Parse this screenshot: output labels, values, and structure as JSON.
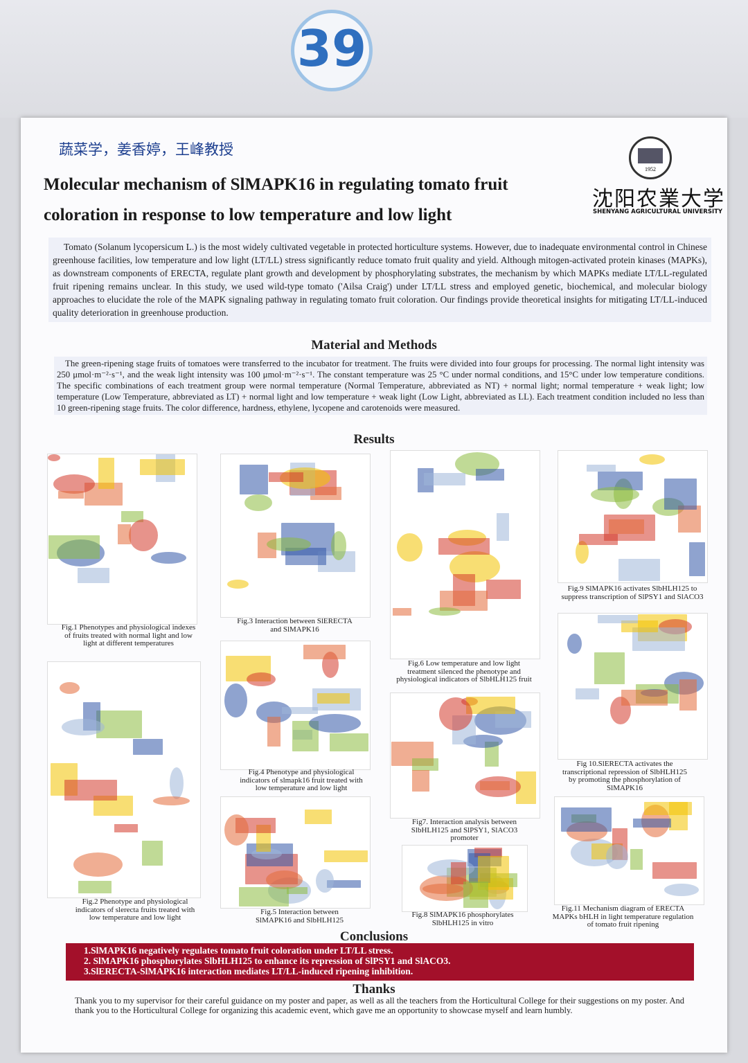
{
  "badge": "39",
  "authors": "蔬菜学，姜香婷，王峰教授",
  "title": [
    "Molecular mechanism of SlMAPK16 in regulating tomato fruit",
    "coloration in response to low temperature and low light"
  ],
  "university": {
    "name_cn": "沈阳农業大学",
    "name_en": "SHENYANG AGRICULTURAL UNIVERSITY",
    "year": "1952"
  },
  "abstract": "Tomato (Solanum lycopersicum L.) is the most widely cultivated vegetable in protected horticulture systems. However, due to inadequate environmental control in Chinese greenhouse facilities, low temperature and low light (LT/LL) stress significantly reduce tomato fruit quality and yield. Although mitogen-activated protein kinases (MAPKs), as downstream components of ERECTA, regulate plant growth and development by phosphorylating substrates, the mechanism by which MAPKs mediate LT/LL-regulated fruit ripening remains unclear. In this study, we used wild-type tomato ('Ailsa Craig') under LT/LL stress and employed genetic, biochemical, and molecular biology approaches to elucidate the role of the MAPK signaling pathway in regulating tomato fruit coloration. Our findings provide theoretical insights for mitigating LT/LL-induced quality deterioration in greenhouse production.",
  "methods": {
    "heading": "Material and Methods",
    "text": "The green-ripening stage fruits of tomatoes were transferred to the incubator for treatment. The fruits were divided into four groups for processing. The normal light intensity was 250 μmol·m⁻²·s⁻¹, and the weak light intensity was 100 μmol·m⁻²·s⁻¹. The constant temperature was 25 °C under normal conditions, and 15°C under low temperature conditions. The specific combinations of each treatment group were normal temperature (Normal Temperature, abbreviated as NT) + normal light; normal temperature + weak light; low temperature (Low Temperature, abbreviated as LT) + normal light and low temperature + weak light (Low Light, abbreviated as LL). Each treatment condition included no less than 10 green-ripening stage fruits. The color difference, hardness, ethylene, lycopene and carotenoids were measured."
  },
  "results": {
    "heading": "Results",
    "figures": [
      "Fig.1 Phenotypes and physiological indexes of fruits treated with normal light and low light at different temperatures",
      "Fig.2 Phenotype and physiological indicators of slerecta fruits treated with low temperature and low light",
      "Fig.3 Interaction between SlERECTA and SlMAPK16",
      "Fig.4 Phenotype and physiological indicators of slmapk16 fruit treated with low temperature and low light",
      "Fig.5 Interaction between SlMAPK16 and SlbHLH125",
      "Fig.6 Low temperature and low light treatment silenced the phenotype and physiological indicators of SlbHLH125 fruit",
      "Fig7. Interaction analysis between SlbHLH125 and SlPSY1, SlACO3 promoter",
      "Fig.8 SlMAPK16 phosphorylates SlbHLH125 in vitro",
      "Fig.9 SlMAPK16 activates SlbHLH125 to suppress transcription of SlPSY1 and SlACO3",
      "Fig 10.SlERECTA activates the transcriptional repression of SlbHLH125 by promoting the phosphorylation of SlMAPK16",
      "Fig.11 Mechanism diagram of ERECTA MAPKs bHLH in light temperature regulation of tomato fruit ripening"
    ]
  },
  "conclusions": {
    "heading": "Conclusions",
    "items": [
      "1.SlMAPK16 negatively regulates tomato fruit coloration under LT/LL stress.",
      "2. SlMAPK16 phosphorylates SlbHLH125 to enhance its repression of SlPSY1 and SlACO3.",
      "3.SlERECTA-SlMAPK16 interaction mediates LT/LL-induced ripening inhibition."
    ]
  },
  "thanks": {
    "heading": "Thanks",
    "text": "Thank you to my supervisor for their careful guidance on my poster and paper, as well as all the teachers from the Horticultural College for their suggestions on my poster. And thank you to the Horticultural College for organizing this academic event, which gave me an opportunity to showcase myself and learn humbly."
  }
}
